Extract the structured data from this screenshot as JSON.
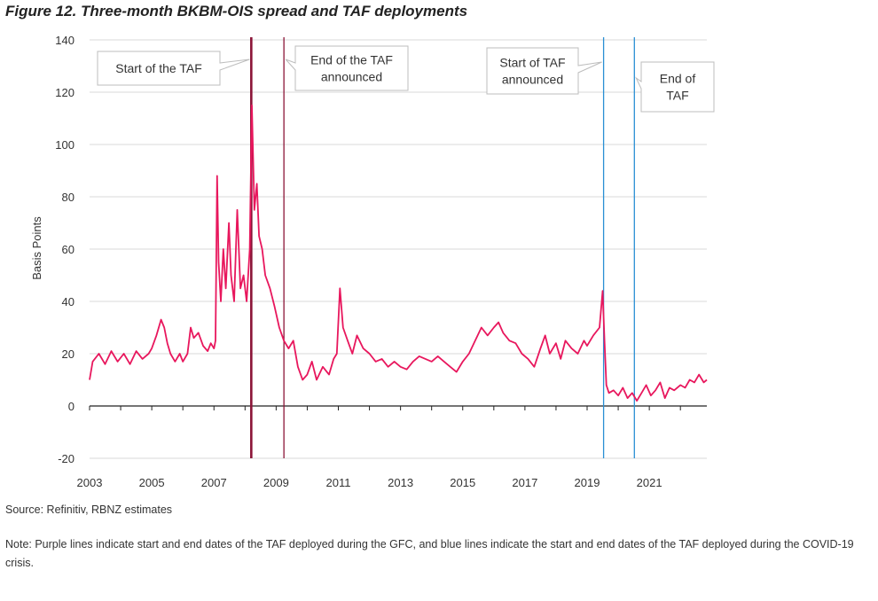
{
  "figure": {
    "title": "Figure 12. Three-month BKBM-OIS spread and TAF deployments",
    "source": "Source: Refinitiv, RBNZ estimates",
    "note": "Note: Purple lines indicate start and end dates of the TAF deployed during the GFC, and blue lines indicate the start and end dates of the TAF deployed during the COVID-19 crisis."
  },
  "chart_data": {
    "type": "line",
    "title": "Three-month BKBM-OIS spread and TAF deployments",
    "xlabel": "",
    "ylabel": "Basis Points",
    "xlim": [
      2003.0,
      2022.85
    ],
    "ylim": [
      -20,
      140
    ],
    "x_ticks": [
      "2003",
      "2005",
      "2007",
      "2009",
      "2011",
      "2013",
      "2015",
      "2017",
      "2019",
      "2021"
    ],
    "y_ticks": [
      "-20",
      "0",
      "20",
      "40",
      "60",
      "80",
      "100",
      "120",
      "140"
    ],
    "grid": "horizontal",
    "series": [
      {
        "color": "#e8175d",
        "points": [
          [
            2003.0,
            10
          ],
          [
            2003.1,
            17
          ],
          [
            2003.3,
            20
          ],
          [
            2003.5,
            16
          ],
          [
            2003.7,
            21
          ],
          [
            2003.9,
            17
          ],
          [
            2004.1,
            20
          ],
          [
            2004.3,
            16
          ],
          [
            2004.5,
            21
          ],
          [
            2004.7,
            18
          ],
          [
            2004.9,
            20
          ],
          [
            2005.0,
            22
          ],
          [
            2005.15,
            27
          ],
          [
            2005.3,
            33
          ],
          [
            2005.4,
            30
          ],
          [
            2005.5,
            24
          ],
          [
            2005.6,
            20
          ],
          [
            2005.75,
            17
          ],
          [
            2005.9,
            20
          ],
          [
            2006.0,
            17
          ],
          [
            2006.15,
            20
          ],
          [
            2006.25,
            30
          ],
          [
            2006.35,
            26
          ],
          [
            2006.5,
            28
          ],
          [
            2006.65,
            23
          ],
          [
            2006.8,
            21
          ],
          [
            2006.9,
            24
          ],
          [
            2007.0,
            22
          ],
          [
            2007.05,
            25
          ],
          [
            2007.1,
            88
          ],
          [
            2007.15,
            55
          ],
          [
            2007.22,
            40
          ],
          [
            2007.3,
            60
          ],
          [
            2007.38,
            45
          ],
          [
            2007.48,
            70
          ],
          [
            2007.55,
            50
          ],
          [
            2007.65,
            40
          ],
          [
            2007.75,
            75
          ],
          [
            2007.85,
            45
          ],
          [
            2007.95,
            50
          ],
          [
            2008.05,
            40
          ],
          [
            2008.15,
            60
          ],
          [
            2008.22,
            115
          ],
          [
            2008.3,
            75
          ],
          [
            2008.38,
            85
          ],
          [
            2008.45,
            65
          ],
          [
            2008.55,
            60
          ],
          [
            2008.65,
            50
          ],
          [
            2008.8,
            45
          ],
          [
            2008.95,
            38
          ],
          [
            2009.1,
            30
          ],
          [
            2009.25,
            25
          ],
          [
            2009.4,
            22
          ],
          [
            2009.55,
            25
          ],
          [
            2009.7,
            15
          ],
          [
            2009.85,
            10
          ],
          [
            2010.0,
            12
          ],
          [
            2010.15,
            17
          ],
          [
            2010.3,
            10
          ],
          [
            2010.5,
            15
          ],
          [
            2010.7,
            12
          ],
          [
            2010.85,
            18
          ],
          [
            2010.95,
            20
          ],
          [
            2011.05,
            45
          ],
          [
            2011.15,
            30
          ],
          [
            2011.3,
            25
          ],
          [
            2011.45,
            20
          ],
          [
            2011.6,
            27
          ],
          [
            2011.8,
            22
          ],
          [
            2012.0,
            20
          ],
          [
            2012.2,
            17
          ],
          [
            2012.4,
            18
          ],
          [
            2012.6,
            15
          ],
          [
            2012.8,
            17
          ],
          [
            2013.0,
            15
          ],
          [
            2013.2,
            14
          ],
          [
            2013.4,
            17
          ],
          [
            2013.6,
            19
          ],
          [
            2013.8,
            18
          ],
          [
            2014.0,
            17
          ],
          [
            2014.2,
            19
          ],
          [
            2014.4,
            17
          ],
          [
            2014.6,
            15
          ],
          [
            2014.8,
            13
          ],
          [
            2015.0,
            17
          ],
          [
            2015.2,
            20
          ],
          [
            2015.4,
            25
          ],
          [
            2015.6,
            30
          ],
          [
            2015.8,
            27
          ],
          [
            2016.0,
            30
          ],
          [
            2016.15,
            32
          ],
          [
            2016.3,
            28
          ],
          [
            2016.5,
            25
          ],
          [
            2016.7,
            24
          ],
          [
            2016.9,
            20
          ],
          [
            2017.1,
            18
          ],
          [
            2017.3,
            15
          ],
          [
            2017.5,
            22
          ],
          [
            2017.65,
            27
          ],
          [
            2017.8,
            20
          ],
          [
            2018.0,
            24
          ],
          [
            2018.15,
            18
          ],
          [
            2018.3,
            25
          ],
          [
            2018.5,
            22
          ],
          [
            2018.7,
            20
          ],
          [
            2018.9,
            25
          ],
          [
            2019.0,
            23
          ],
          [
            2019.2,
            27
          ],
          [
            2019.4,
            30
          ],
          [
            2019.5,
            44
          ],
          [
            2019.56,
            25
          ],
          [
            2019.62,
            8
          ],
          [
            2019.7,
            5
          ],
          [
            2019.85,
            6
          ],
          [
            2020.0,
            4
          ],
          [
            2020.15,
            7
          ],
          [
            2020.3,
            3
          ],
          [
            2020.45,
            5
          ],
          [
            2020.6,
            2
          ],
          [
            2020.75,
            5
          ],
          [
            2020.9,
            8
          ],
          [
            2021.05,
            4
          ],
          [
            2021.2,
            6
          ],
          [
            2021.35,
            9
          ],
          [
            2021.5,
            3
          ],
          [
            2021.65,
            7
          ],
          [
            2021.8,
            6
          ],
          [
            2022.0,
            8
          ],
          [
            2022.15,
            7
          ],
          [
            2022.3,
            10
          ],
          [
            2022.45,
            9
          ],
          [
            2022.6,
            12
          ],
          [
            2022.75,
            9
          ],
          [
            2022.85,
            10
          ]
        ]
      }
    ],
    "event_lines": [
      {
        "x": 2008.2,
        "label": "Start of the TAF",
        "color": "#8b1538",
        "style": "thick"
      },
      {
        "x": 2009.25,
        "label": "End of the TAF announced",
        "color": "#8b1538",
        "style": "thin"
      },
      {
        "x": 2019.53,
        "label": "Start of TAF announced",
        "color": "#2a8fd4",
        "style": "thin"
      },
      {
        "x": 2020.52,
        "label": "End of TAF",
        "color": "#2a8fd4",
        "style": "thin"
      }
    ],
    "callouts": [
      {
        "lines": [
          "Start of the TAF"
        ]
      },
      {
        "lines": [
          "End of the TAF",
          "announced"
        ]
      },
      {
        "lines": [
          "Start of TAF",
          "announced"
        ]
      },
      {
        "lines": [
          "End of",
          "TAF"
        ]
      }
    ]
  }
}
